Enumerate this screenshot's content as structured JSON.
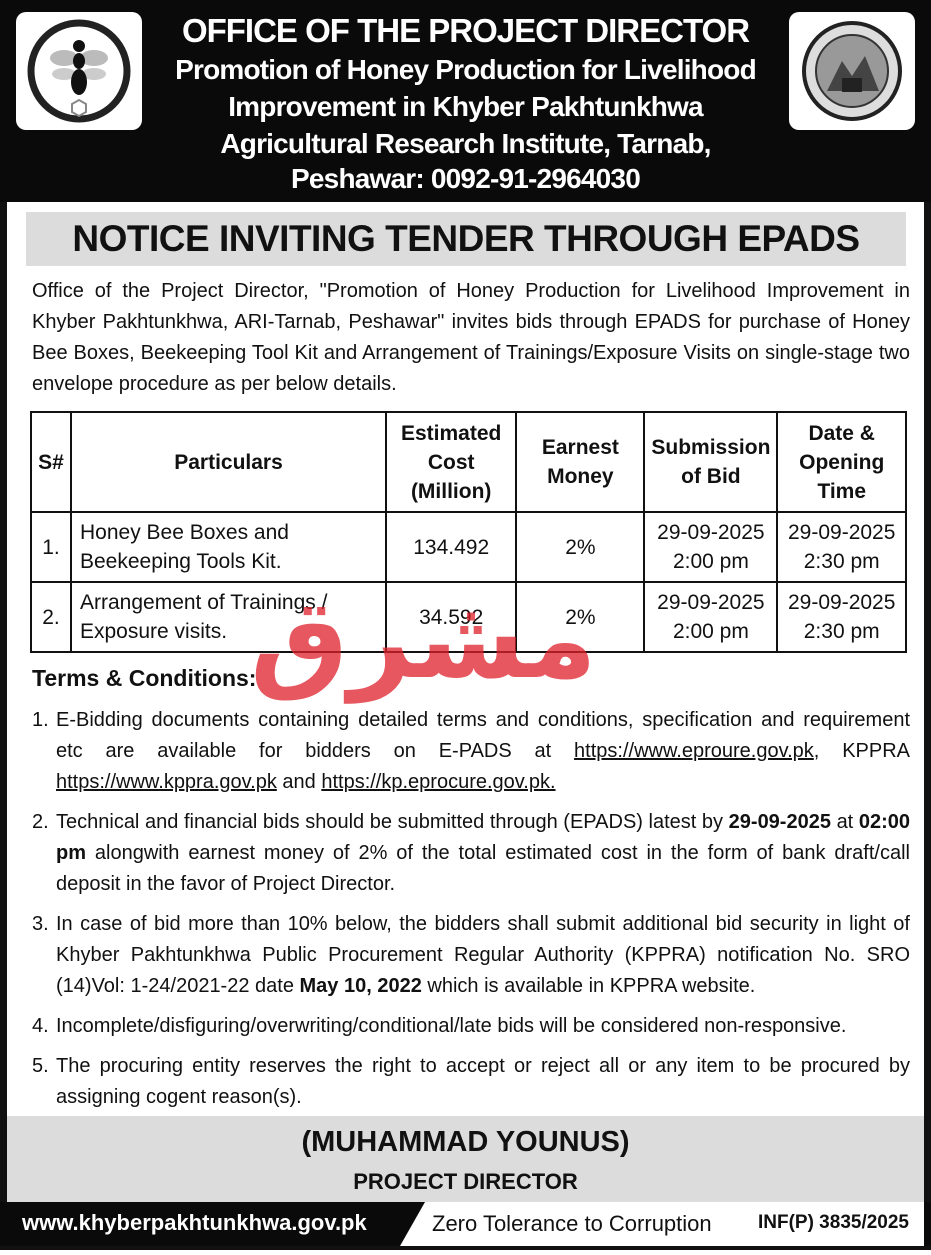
{
  "header": {
    "office": "OFFICE OF THE PROJECT DIRECTOR",
    "lines": [
      "Promotion of Honey Production for Livelihood",
      "Improvement in Khyber Pakhtunkhwa",
      "Agricultural Research Institute, Tarnab,",
      "Peshawar: 0092-91-2964030"
    ],
    "left_logo": "bee-logo",
    "right_logo": "agricultural-research-institute-peshawar-seal"
  },
  "title": "NOTICE INVITING TENDER THROUGH EPADS",
  "intro": "Office of the Project Director, \"Promotion of Honey Production for Livelihood Improvement in Khyber Pakhtunkhwa, ARI-Tarnab, Peshawar\" invites bids through EPADS for purchase of Honey Bee Boxes, Beekeeping Tool Kit and Arrangement of Trainings/Exposure Visits on single-stage two envelope procedure as per below details.",
  "table": {
    "headers": [
      "S#",
      "Particulars",
      "Estimated Cost (Million)",
      "Earnest Money",
      "Submission of Bid",
      "Date & Opening Time"
    ],
    "rows": [
      {
        "sn": "1.",
        "particulars": "Honey Bee Boxes and Beekeeping Tools Kit.",
        "cost": "134.492",
        "earnest": "2%",
        "sub_date": "29-09-2025",
        "sub_time": "2:00 pm",
        "open_date": "29-09-2025",
        "open_time": "2:30 pm"
      },
      {
        "sn": "2.",
        "particulars": "Arrangement of Trainings / Exposure visits.",
        "cost": "34.592",
        "earnest": "2%",
        "sub_date": "29-09-2025",
        "sub_time": "2:00 pm",
        "open_date": "29-09-2025",
        "open_time": "2:30 pm"
      }
    ]
  },
  "terms": {
    "heading": "Terms & Conditions:",
    "items": [
      {
        "n": "1.",
        "a": "E-Bidding documents containing detailed terms and conditions, specification and requirement etc are available for bidders on E-PADS at ",
        "link1": "https://www.eproure.gov.pk",
        "b": ", KPPRA ",
        "link2": "https://www.kppra.gov.pk",
        "c": " and ",
        "link3": "https://kp.eprocure.gov.pk."
      },
      {
        "n": "2.",
        "a": "Technical and financial bids should be submitted through (EPADS) latest by ",
        "b1": "29-09-2025",
        "b": " at ",
        "b2": "02:00 pm",
        "c": " alongwith earnest money of 2% of the total estimated cost in the form of bank draft/call deposit in the favor of Project Director."
      },
      {
        "n": "3.",
        "a": "In case of bid more than 10% below, the bidders shall submit additional bid security in light of Khyber Pakhtunkhwa Public Procurement Regular Authority (KPPRA) notification No. SRO (14)Vol: 1-24/2021-22 date ",
        "b1": "May 10, 2022",
        "c": " which is available in KPPRA website."
      },
      {
        "n": "4.",
        "a": "Incomplete/disfiguring/overwriting/conditional/late bids will be considered non-responsive."
      },
      {
        "n": "5.",
        "a": "The procuring entity reserves the right to accept or reject all or any item to be procured by assigning cogent reason(s)."
      }
    ]
  },
  "signature": {
    "name": "(MUHAMMAD YOUNUS)",
    "designation": "PROJECT DIRECTOR"
  },
  "footer": {
    "website": "www.khyberpakhtunkhwa.gov.pk",
    "slogan": "Zero Tolerance to Corruption",
    "ref": "INF(P) 3835/2025"
  },
  "watermark": {
    "text": "مشرق",
    "color": "#e0202a"
  }
}
